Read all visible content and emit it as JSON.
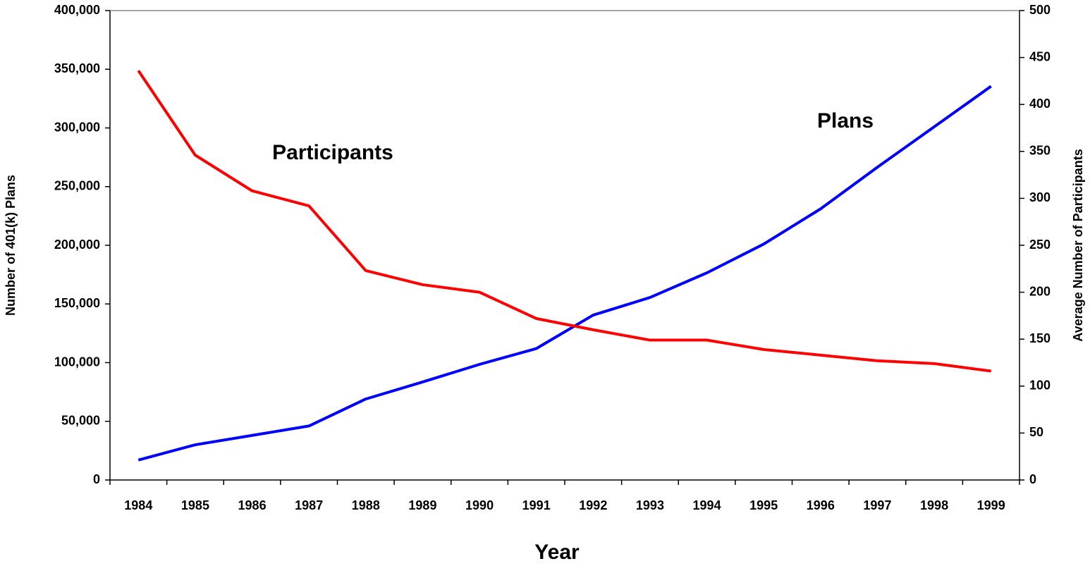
{
  "chart_data": {
    "type": "line",
    "x_label": "Year",
    "y_label": "Number of 401(k) Plans",
    "y2_label": "Average Number of Participants",
    "categories": [
      "1984",
      "1985",
      "1986",
      "1987",
      "1988",
      "1989",
      "1990",
      "1991",
      "1992",
      "1993",
      "1994",
      "1995",
      "1996",
      "1997",
      "1998",
      "1999"
    ],
    "series": [
      {
        "name": "Plans",
        "color": "#0000ff",
        "axis": "y",
        "values": [
          17000,
          30000,
          38000,
          46000,
          69000,
          83500,
          98500,
          112000,
          140500,
          155500,
          176500,
          201000,
          231000,
          266500,
          301000,
          335500
        ]
      },
      {
        "name": "Participants",
        "color": "#ff0000",
        "axis": "y2",
        "values": [
          436,
          346,
          308,
          292,
          223,
          208,
          200,
          172,
          160,
          149,
          149,
          139,
          133,
          127,
          124,
          116
        ]
      }
    ],
    "ylim": [
      0,
      400000
    ],
    "yticks": [
      0,
      {
        "value": 50000,
        "label": "50,000"
      },
      {
        "value": 100000,
        "label": "100,000"
      },
      {
        "value": 150000,
        "label": "150,000"
      },
      {
        "value": 200000,
        "label": "200,000"
      },
      {
        "value": 250000,
        "label": "250,000"
      },
      {
        "value": 300000,
        "label": "300,000"
      },
      {
        "value": 350000,
        "label": "350,000"
      },
      {
        "value": 400000,
        "label": "400,000"
      }
    ],
    "y2lim": [
      0,
      500
    ],
    "y2ticks": [
      0,
      50,
      100,
      150,
      200,
      250,
      300,
      350,
      400,
      450,
      500
    ],
    "grid": false
  }
}
